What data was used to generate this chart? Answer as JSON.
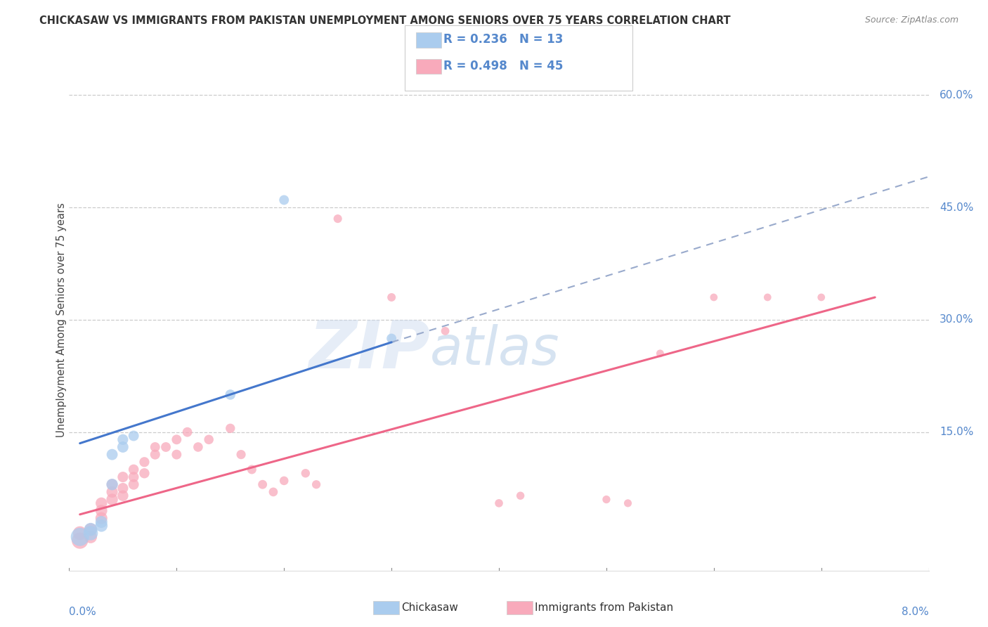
{
  "title": "CHICKASAW VS IMMIGRANTS FROM PAKISTAN UNEMPLOYMENT AMONG SENIORS OVER 75 YEARS CORRELATION CHART",
  "source": "Source: ZipAtlas.com",
  "ylabel": "Unemployment Among Seniors over 75 years",
  "x_min": 0.0,
  "x_max": 0.08,
  "y_min": -0.035,
  "y_max": 0.635,
  "y_ticks": [
    0.0,
    0.15,
    0.3,
    0.45,
    0.6
  ],
  "y_tick_labels": [
    "",
    "15.0%",
    "30.0%",
    "45.0%",
    "60.0%"
  ],
  "legend_entries": [
    {
      "label": "Chickasaw",
      "R": "0.236",
      "N": "13",
      "color": "#aaccee"
    },
    {
      "label": "Immigrants from Pakistan",
      "R": "0.498",
      "N": "45",
      "color": "#f8aabb"
    }
  ],
  "chickasaw_color": "#aaccee",
  "pakistan_color": "#f8aabb",
  "blue_line_color": "#4477cc",
  "pink_line_color": "#ee6688",
  "dashed_line_color": "#99aacc",
  "watermark_zip": "ZIP",
  "watermark_atlas": "atlas",
  "chickasaw_points": [
    [
      0.001,
      0.01
    ],
    [
      0.002,
      0.015
    ],
    [
      0.002,
      0.02
    ],
    [
      0.003,
      0.025
    ],
    [
      0.003,
      0.03
    ],
    [
      0.004,
      0.08
    ],
    [
      0.004,
      0.12
    ],
    [
      0.005,
      0.13
    ],
    [
      0.005,
      0.14
    ],
    [
      0.006,
      0.145
    ],
    [
      0.015,
      0.2
    ],
    [
      0.02,
      0.46
    ],
    [
      0.03,
      0.275
    ]
  ],
  "pakistan_points": [
    [
      0.001,
      0.005
    ],
    [
      0.001,
      0.015
    ],
    [
      0.002,
      0.01
    ],
    [
      0.002,
      0.02
    ],
    [
      0.003,
      0.035
    ],
    [
      0.003,
      0.045
    ],
    [
      0.003,
      0.055
    ],
    [
      0.004,
      0.06
    ],
    [
      0.004,
      0.07
    ],
    [
      0.004,
      0.08
    ],
    [
      0.005,
      0.065
    ],
    [
      0.005,
      0.075
    ],
    [
      0.005,
      0.09
    ],
    [
      0.006,
      0.08
    ],
    [
      0.006,
      0.09
    ],
    [
      0.006,
      0.1
    ],
    [
      0.007,
      0.095
    ],
    [
      0.007,
      0.11
    ],
    [
      0.008,
      0.12
    ],
    [
      0.008,
      0.13
    ],
    [
      0.009,
      0.13
    ],
    [
      0.01,
      0.12
    ],
    [
      0.01,
      0.14
    ],
    [
      0.011,
      0.15
    ],
    [
      0.012,
      0.13
    ],
    [
      0.013,
      0.14
    ],
    [
      0.015,
      0.155
    ],
    [
      0.016,
      0.12
    ],
    [
      0.017,
      0.1
    ],
    [
      0.018,
      0.08
    ],
    [
      0.019,
      0.07
    ],
    [
      0.02,
      0.085
    ],
    [
      0.022,
      0.095
    ],
    [
      0.023,
      0.08
    ],
    [
      0.025,
      0.435
    ],
    [
      0.03,
      0.33
    ],
    [
      0.035,
      0.285
    ],
    [
      0.04,
      0.055
    ],
    [
      0.042,
      0.065
    ],
    [
      0.05,
      0.06
    ],
    [
      0.052,
      0.055
    ],
    [
      0.055,
      0.255
    ],
    [
      0.06,
      0.33
    ],
    [
      0.065,
      0.33
    ],
    [
      0.07,
      0.33
    ]
  ],
  "chickasaw_sizes": [
    350,
    220,
    180,
    160,
    150,
    140,
    130,
    130,
    120,
    115,
    110,
    100,
    100
  ],
  "pakistan_sizes": [
    280,
    200,
    170,
    160,
    150,
    145,
    140,
    140,
    135,
    130,
    125,
    120,
    118,
    115,
    112,
    110,
    108,
    105,
    103,
    100,
    100,
    100,
    100,
    98,
    96,
    95,
    93,
    90,
    88,
    86,
    84,
    82,
    80,
    78,
    76,
    74,
    72,
    70,
    68,
    66,
    64,
    62,
    60,
    60,
    60
  ],
  "blue_line_x": [
    0.001,
    0.03
  ],
  "blue_line_y": [
    0.135,
    0.27
  ],
  "pink_line_x": [
    0.001,
    0.075
  ],
  "pink_line_y": [
    0.04,
    0.33
  ],
  "dashed_line_x": [
    0.03,
    0.082
  ],
  "dashed_line_y": [
    0.27,
    0.5
  ]
}
